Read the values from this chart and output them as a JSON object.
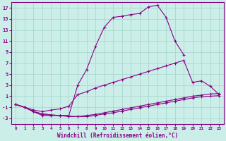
{
  "xlabel": "Windchill (Refroidissement éolien,°C)",
  "bg_color": "#cceee8",
  "grid_color": "#a8d8d0",
  "line_color": "#880088",
  "xlim": [
    -0.5,
    23.5
  ],
  "ylim": [
    -4,
    18
  ],
  "yticks": [
    -3,
    -1,
    1,
    3,
    5,
    7,
    9,
    11,
    13,
    15,
    17
  ],
  "xticks": [
    0,
    1,
    2,
    3,
    4,
    5,
    6,
    7,
    8,
    9,
    10,
    11,
    12,
    13,
    14,
    15,
    16,
    17,
    18,
    19,
    20,
    21,
    22,
    23
  ],
  "line_main_x": [
    0,
    1,
    2,
    3,
    4,
    5,
    6,
    7,
    8,
    9,
    10,
    11,
    12,
    13,
    14,
    15,
    16,
    17,
    18,
    19
  ],
  "line_main_y": [
    -0.5,
    -1.0,
    -1.8,
    -2.2,
    -2.4,
    -2.5,
    -2.5,
    3.0,
    5.8,
    10.0,
    13.5,
    15.3,
    15.5,
    15.8,
    16.0,
    17.2,
    17.5,
    15.3,
    11.0,
    8.5
  ],
  "line_mid_x": [
    0,
    1,
    2,
    3,
    4,
    5,
    6,
    7,
    8,
    9,
    10,
    11,
    12,
    13,
    14,
    15,
    16,
    17,
    18,
    19,
    20,
    21,
    22,
    23
  ],
  "line_mid_y": [
    -0.5,
    -1.0,
    -1.5,
    -1.8,
    -1.5,
    -1.3,
    -0.8,
    1.3,
    1.8,
    2.5,
    3.0,
    3.5,
    4.0,
    4.5,
    5.0,
    5.5,
    6.0,
    6.5,
    7.0,
    7.5,
    3.5,
    3.8,
    2.8,
    1.3
  ],
  "line_low_x": [
    0,
    1,
    2,
    3,
    4,
    5,
    6,
    7,
    8,
    9,
    10,
    11,
    12,
    13,
    14,
    15,
    16,
    17,
    18,
    19,
    20,
    21,
    22,
    23
  ],
  "line_low_y": [
    -0.5,
    -1.0,
    -1.8,
    -2.5,
    -2.5,
    -2.5,
    -2.7,
    -2.7,
    -2.5,
    -2.3,
    -2.0,
    -1.7,
    -1.4,
    -1.1,
    -0.8,
    -0.5,
    -0.2,
    0.1,
    0.4,
    0.7,
    1.0,
    1.2,
    1.4,
    1.5
  ],
  "line_bot_x": [
    0,
    1,
    2,
    3,
    4,
    5,
    6,
    7,
    8,
    9,
    10,
    11,
    12,
    13,
    14,
    15,
    16,
    17,
    18,
    19,
    20,
    21,
    22,
    23
  ],
  "line_bot_y": [
    -0.5,
    -1.0,
    -1.8,
    -2.2,
    -2.4,
    -2.5,
    -2.6,
    -2.7,
    -2.7,
    -2.5,
    -2.2,
    -2.0,
    -1.7,
    -1.4,
    -1.1,
    -0.8,
    -0.5,
    -0.2,
    0.1,
    0.4,
    0.7,
    0.9,
    1.0,
    1.1
  ]
}
